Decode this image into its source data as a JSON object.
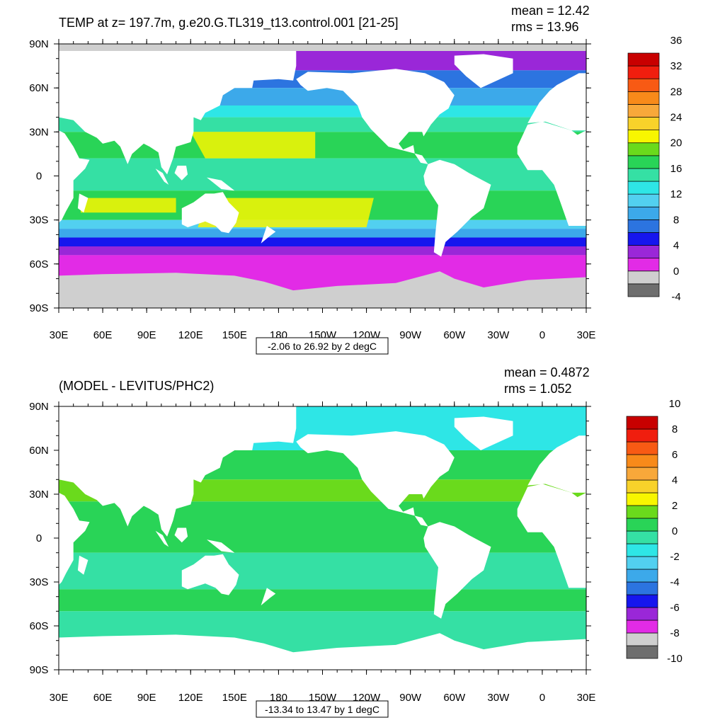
{
  "panels": [
    {
      "title": "TEMP at z= 197.7m, g.e20.G.TL319_t13.control.001 [21-25]",
      "stats": {
        "mean": "mean = 12.42",
        "rms": "rms = 13.96"
      },
      "range_label": "-2.06 to 26.92 by 2 degC",
      "colorbar": {
        "colors": [
          "#6e6e6e",
          "#cfcfcf",
          "#e22be6",
          "#9a27d8",
          "#1616ee",
          "#2c74e0",
          "#3ca9ea",
          "#52d0f0",
          "#2ee6e6",
          "#35e0a4",
          "#29d457",
          "#6ada1c",
          "#f8f600",
          "#f8d22a",
          "#f8a83a",
          "#f88a1a",
          "#f85a14",
          "#f01e0e",
          "#c80000"
        ],
        "labels": [
          "-4",
          "0",
          "4",
          "8",
          "12",
          "16",
          "20",
          "24",
          "28",
          "32",
          "36"
        ]
      }
    },
    {
      "title": "(MODEL - LEVITUS/PHC2)",
      "stats": {
        "mean": "mean = 0.4872",
        "rms": "rms = 1.052"
      },
      "range_label": "-13.34 to 13.47 by 1 degC",
      "colorbar": {
        "colors": [
          "#6e6e6e",
          "#cfcfcf",
          "#e22be6",
          "#9a27d8",
          "#1616ee",
          "#2c74e0",
          "#3ca9ea",
          "#52d0f0",
          "#2ee6e6",
          "#35e0a4",
          "#29d457",
          "#6ada1c",
          "#f8f600",
          "#f8d22a",
          "#f8a83a",
          "#f88a1a",
          "#f85a14",
          "#f01e0e",
          "#c80000"
        ],
        "labels": [
          "-10",
          "-8",
          "-6",
          "-4",
          "-2",
          "0",
          "2",
          "4",
          "6",
          "8",
          "10"
        ]
      }
    }
  ],
  "axes": {
    "lon_labels": [
      "30E",
      "60E",
      "90E",
      "120E",
      "150E",
      "180",
      "150W",
      "120W",
      "90W",
      "60W",
      "30W",
      "0",
      "30E"
    ],
    "lat_labels": [
      "90N",
      "60N",
      "30N",
      "0",
      "30S",
      "60S",
      "90S"
    ]
  },
  "map_colors": {
    "land": "#ffffff",
    "ice": "#cfcfcf",
    "panel1_ocean": "#2ee6e6",
    "panel2_ocean": "#29d457"
  }
}
